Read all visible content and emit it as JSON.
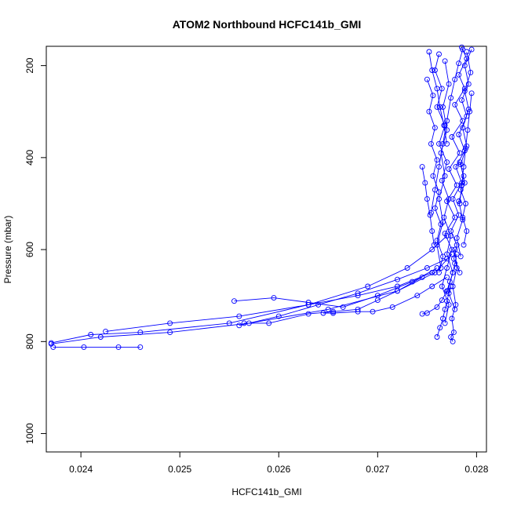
{
  "chart_data": {
    "type": "line",
    "title": "ATOM2 Northbound HCFC141b_GMI",
    "xlabel": "HCFC141b_GMI",
    "ylabel": "Pressure (mbar)",
    "xlim": [
      0.02365,
      0.0281
    ],
    "ylim": [
      1040,
      158
    ],
    "y_inverted": true,
    "grid": false,
    "legend": "none",
    "series_color": "#0000ff",
    "marker": "open-circle",
    "x_ticks": [
      {
        "value": 0.024,
        "label": "0.024"
      },
      {
        "value": 0.025,
        "label": "0.025"
      },
      {
        "value": 0.026,
        "label": "0.026"
      },
      {
        "value": 0.027,
        "label": "0.027"
      },
      {
        "value": 0.028,
        "label": "0.028"
      }
    ],
    "y_ticks": [
      {
        "value": 200,
        "label": "200"
      },
      {
        "value": 400,
        "label": "400"
      },
      {
        "value": 600,
        "label": "600"
      },
      {
        "value": 800,
        "label": "800"
      },
      {
        "value": 1000,
        "label": "1000"
      }
    ],
    "series": [
      {
        "x": [
          0.02785,
          0.0279,
          0.02782,
          0.02788,
          0.02778,
          0.02786,
          0.02775,
          0.02783,
          0.02772,
          0.0278,
          0.0277,
          0.02778,
          0.02768,
          0.02775,
          0.0277,
          0.02765,
          0.02772,
          0.02768
        ],
        "y": [
          160,
          185,
          220,
          250,
          285,
          320,
          355,
          390,
          425,
          460,
          495,
          530,
          565,
          600,
          640,
          680,
          720,
          760
        ]
      },
      {
        "x": [
          0.02795,
          0.02788,
          0.02792,
          0.02785,
          0.0279,
          0.02782,
          0.02788,
          0.02779,
          0.02785,
          0.02776,
          0.02782,
          0.02774,
          0.0278,
          0.02777,
          0.02783
        ],
        "y": [
          165,
          200,
          240,
          275,
          310,
          350,
          385,
          420,
          455,
          490,
          525,
          560,
          590,
          620,
          650
        ]
      },
      {
        "x": [
          0.02762,
          0.02758,
          0.02765,
          0.0276,
          0.02768,
          0.02762,
          0.0277,
          0.02765,
          0.02772,
          0.02767,
          0.02774,
          0.0277,
          0.02776,
          0.02771,
          0.02778
        ],
        "y": [
          175,
          210,
          250,
          290,
          330,
          370,
          410,
          450,
          490,
          530,
          570,
          610,
          650,
          690,
          730
        ]
      },
      {
        "x": [
          0.0275,
          0.02756,
          0.02752,
          0.02758,
          0.02754,
          0.0276,
          0.02756,
          0.02762,
          0.02758,
          0.02764,
          0.0276,
          0.02766,
          0.02762
        ],
        "y": [
          230,
          265,
          300,
          335,
          370,
          405,
          440,
          475,
          510,
          545,
          580,
          615,
          650
        ]
      },
      {
        "x": [
          0.0279,
          0.02794,
          0.02788,
          0.02792,
          0.02786,
          0.0279,
          0.02784,
          0.02788,
          0.02782,
          0.02786,
          0.0278,
          0.02784
        ],
        "y": [
          170,
          215,
          255,
          295,
          335,
          375,
          415,
          455,
          495,
          535,
          575,
          615
        ]
      },
      {
        "x": [
          0.02768,
          0.02772,
          0.02766,
          0.0277,
          0.02764,
          0.02768,
          0.02762,
          0.02766,
          0.0276,
          0.02764
        ],
        "y": [
          190,
          240,
          290,
          340,
          390,
          440,
          490,
          540,
          590,
          640
        ]
      },
      {
        "x": [
          0.02754,
          0.02758,
          0.02762,
          0.02766,
          0.0277,
          0.02774,
          0.02778,
          0.02782,
          0.02786
        ],
        "y": [
          520,
          470,
          420,
          370,
          320,
          270,
          230,
          195,
          165
        ]
      },
      {
        "x": [
          0.02778,
          0.0278,
          0.02776,
          0.02779,
          0.02775,
          0.02777,
          0.02774,
          0.02776
        ],
        "y": [
          600,
          640,
          680,
          720,
          750,
          780,
          790,
          800
        ]
      },
      {
        "x": [
          0.02787,
          0.0279,
          0.02786,
          0.02789,
          0.02784,
          0.02787,
          0.02783
        ],
        "y": [
          590,
          560,
          530,
          500,
          470,
          440,
          410
        ]
      },
      {
        "x": [
          0.0237,
          0.0241,
          0.0246,
          0.0255,
          0.0263,
          0.0269,
          0.0273,
          0.02755,
          0.0277
        ],
        "y": [
          803,
          785,
          780,
          760,
          720,
          680,
          640,
          600,
          570
        ]
      },
      {
        "x": [
          0.02372,
          0.02403,
          0.02438,
          0.0246
        ],
        "y": [
          812,
          812,
          812,
          812
        ]
      },
      {
        "x": [
          0.0237,
          0.0242,
          0.0249,
          0.0257,
          0.0265,
          0.0272,
          0.02758,
          0.02775
        ],
        "y": [
          805,
          790,
          780,
          760,
          730,
          690,
          650,
          610
        ]
      },
      {
        "x": [
          0.02425,
          0.0249,
          0.0256,
          0.0263,
          0.0268,
          0.0272,
          0.02755
        ],
        "y": [
          778,
          760,
          745,
          720,
          700,
          680,
          650
        ]
      },
      {
        "x": [
          0.02555,
          0.02595,
          0.0263,
          0.02665,
          0.027,
          0.02735,
          0.0276
        ],
        "y": [
          712,
          705,
          715,
          725,
          700,
          670,
          640
        ]
      },
      {
        "x": [
          0.02565,
          0.0259,
          0.0263,
          0.02655,
          0.0268,
          0.027,
          0.0272,
          0.02745
        ],
        "y": [
          760,
          760,
          740,
          735,
          730,
          710,
          690,
          660
        ]
      },
      {
        "x": [
          0.02645,
          0.02655,
          0.0268,
          0.02695,
          0.02715,
          0.0274,
          0.02755,
          0.0277
        ],
        "y": [
          738,
          738,
          735,
          735,
          725,
          700,
          680,
          660
        ]
      },
      {
        "x": [
          0.02745,
          0.0275,
          0.0276,
          0.02765,
          0.0277,
          0.02773,
          0.02776,
          0.02778,
          0.0278
        ],
        "y": [
          740,
          738,
          725,
          710,
          690,
          670,
          650,
          630,
          610
        ]
      },
      {
        "x": [
          0.0276,
          0.02763,
          0.02766,
          0.02768,
          0.0277,
          0.02772,
          0.02774
        ],
        "y": [
          790,
          770,
          750,
          730,
          712,
          695,
          680
        ]
      },
      {
        "x": [
          0.02745,
          0.02748,
          0.0275,
          0.02753,
          0.02755,
          0.02757
        ],
        "y": [
          420,
          455,
          490,
          525,
          560,
          590
        ]
      },
      {
        "x": [
          0.0256,
          0.026,
          0.0264,
          0.0268,
          0.0272,
          0.0275,
          0.0277
        ],
        "y": [
          765,
          745,
          720,
          695,
          665,
          640,
          620
        ]
      },
      {
        "x": [
          0.02752,
          0.02755,
          0.0276,
          0.02763,
          0.02767,
          0.0277
        ],
        "y": [
          170,
          210,
          250,
          290,
          330,
          370
        ]
      },
      {
        "x": [
          0.02795,
          0.02793,
          0.02791,
          0.02789,
          0.02787,
          0.02785,
          0.02783
        ],
        "y": [
          260,
          300,
          340,
          380,
          420,
          460,
          500
        ]
      }
    ]
  }
}
